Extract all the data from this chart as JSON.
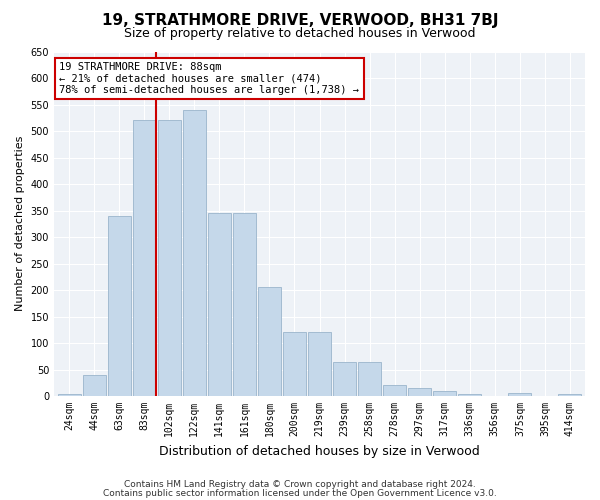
{
  "title": "19, STRATHMORE DRIVE, VERWOOD, BH31 7BJ",
  "subtitle": "Size of property relative to detached houses in Verwood",
  "xlabel": "Distribution of detached houses by size in Verwood",
  "ylabel": "Number of detached properties",
  "categories": [
    "24sqm",
    "44sqm",
    "63sqm",
    "83sqm",
    "102sqm",
    "122sqm",
    "141sqm",
    "161sqm",
    "180sqm",
    "200sqm",
    "219sqm",
    "239sqm",
    "258sqm",
    "278sqm",
    "297sqm",
    "317sqm",
    "336sqm",
    "356sqm",
    "375sqm",
    "395sqm",
    "414sqm"
  ],
  "values": [
    3,
    40,
    340,
    520,
    520,
    540,
    345,
    345,
    205,
    120,
    120,
    65,
    65,
    20,
    15,
    10,
    3,
    0,
    5,
    0,
    3
  ],
  "bar_color": "#c5d8ea",
  "bar_edge_color": "#9ab5cc",
  "vline_index": 3,
  "annotation_text": "19 STRATHMORE DRIVE: 88sqm\n← 21% of detached houses are smaller (474)\n78% of semi-detached houses are larger (1,738) →",
  "annotation_box_color": "#ffffff",
  "annotation_box_edge": "#cc0000",
  "vline_color": "#cc0000",
  "ylim": [
    0,
    650
  ],
  "yticks": [
    0,
    50,
    100,
    150,
    200,
    250,
    300,
    350,
    400,
    450,
    500,
    550,
    600,
    650
  ],
  "footer1": "Contains HM Land Registry data © Crown copyright and database right 2024.",
  "footer2": "Contains public sector information licensed under the Open Government Licence v3.0.",
  "title_fontsize": 11,
  "subtitle_fontsize": 9,
  "xlabel_fontsize": 9,
  "ylabel_fontsize": 8,
  "tick_fontsize": 7,
  "footer_fontsize": 6.5,
  "bg_color": "#ffffff",
  "plot_bg_color": "#eef2f7",
  "grid_color": "#ffffff"
}
